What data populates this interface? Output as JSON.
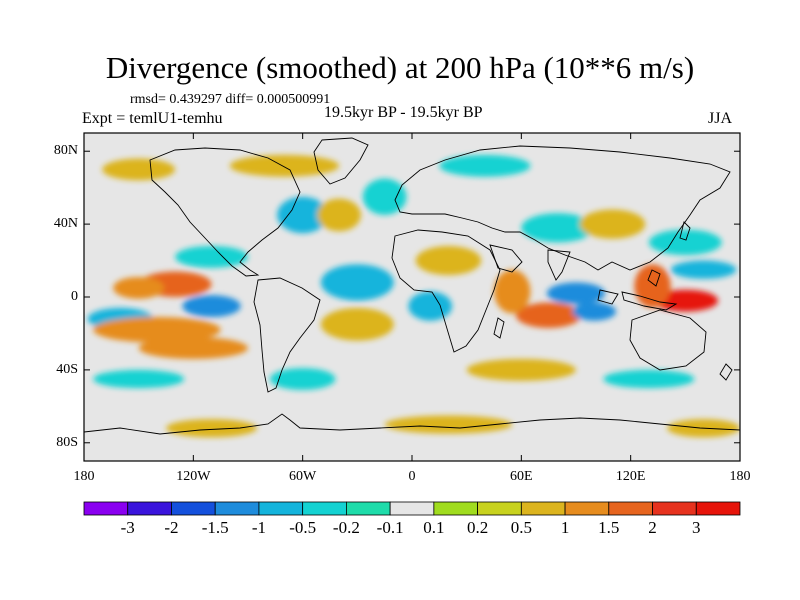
{
  "title": "Divergence (smoothed) at 200 hPa (10**6 m/s)",
  "stats": "rmsd= 0.439297  diff= 0.000500991",
  "experiment": "Expt = temlU1-temhu",
  "period": "19.5kyr BP - 19.5kyr BP",
  "season": "JJA",
  "lat_ticks": [
    "80N",
    "40N",
    "0",
    "40S",
    "80S"
  ],
  "lat_values": [
    80,
    40,
    0,
    -40,
    -80
  ],
  "lon_ticks": [
    "180",
    "120W",
    "60W",
    "0",
    "60E",
    "120E",
    "180"
  ],
  "lon_values": [
    -180,
    -120,
    -60,
    0,
    60,
    120,
    180
  ],
  "colorbar_labels": [
    "-3",
    "-2",
    "-1.5",
    "-1",
    "-0.5",
    "-0.2",
    "-0.1",
    "0.1",
    "0.2",
    "0.5",
    "1",
    "1.5",
    "2",
    "3"
  ],
  "colorbar_colors": [
    "#8a00f0",
    "#3a14dc",
    "#1450dc",
    "#1e8cdc",
    "#14b4dc",
    "#14d2d2",
    "#1edcaa",
    "#e6e6e6",
    "#a0dc1e",
    "#c8d21e",
    "#dcb41e",
    "#e68c1e",
    "#e6641e",
    "#e6321e",
    "#e6140a"
  ],
  "land_color": "#e6e6e6",
  "chart_data": {
    "type": "heatmap",
    "title": "Divergence (smoothed) at 200 hPa (10**6 m/s)",
    "variable": "Divergence (smoothed) at 200 hPa",
    "units": "10**6 m/s",
    "lon_range": [
      -180,
      180
    ],
    "lat_range": [
      -90,
      90
    ],
    "contour_levels": [
      -3,
      -2,
      -1.5,
      -1,
      -0.5,
      -0.2,
      -0.1,
      0.1,
      0.2,
      0.5,
      1,
      1.5,
      2,
      3
    ],
    "features": [
      {
        "lon": 150,
        "lat": -2,
        "value": 3.0,
        "rx": 18,
        "ry": 6
      },
      {
        "lon": 132,
        "lat": 6,
        "value": 1.8,
        "rx": 10,
        "ry": 12
      },
      {
        "lon": 75,
        "lat": -10,
        "value": 1.6,
        "rx": 18,
        "ry": 7
      },
      {
        "lon": 55,
        "lat": 3,
        "value": 1.3,
        "rx": 10,
        "ry": 12
      },
      {
        "lon": 90,
        "lat": 2,
        "value": -1.5,
        "rx": 16,
        "ry": 6
      },
      {
        "lon": 100,
        "lat": -8,
        "value": -1.5,
        "rx": 12,
        "ry": 5
      },
      {
        "lon": -130,
        "lat": 7,
        "value": 1.5,
        "rx": 20,
        "ry": 7
      },
      {
        "lon": -150,
        "lat": 5,
        "value": 1.0,
        "rx": 14,
        "ry": 6
      },
      {
        "lon": -110,
        "lat": -5,
        "value": -1.5,
        "rx": 16,
        "ry": 6
      },
      {
        "lon": -160,
        "lat": -12,
        "value": -1.0,
        "rx": 18,
        "ry": 6
      },
      {
        "lon": -140,
        "lat": -18,
        "value": 1.2,
        "rx": 35,
        "ry": 7
      },
      {
        "lon": -120,
        "lat": -28,
        "value": 1.0,
        "rx": 30,
        "ry": 6
      },
      {
        "lon": -110,
        "lat": 22,
        "value": -0.5,
        "rx": 20,
        "ry": 6
      },
      {
        "lon": -30,
        "lat": 8,
        "value": -1.0,
        "rx": 20,
        "ry": 10
      },
      {
        "lon": -30,
        "lat": -15,
        "value": 0.6,
        "rx": 20,
        "ry": 9
      },
      {
        "lon": 10,
        "lat": -5,
        "value": -0.8,
        "rx": 12,
        "ry": 8
      },
      {
        "lon": 20,
        "lat": 20,
        "value": 0.6,
        "rx": 18,
        "ry": 8
      },
      {
        "lon": -15,
        "lat": 55,
        "value": -0.5,
        "rx": 12,
        "ry": 10
      },
      {
        "lon": -60,
        "lat": 45,
        "value": -0.8,
        "rx": 14,
        "ry": 10
      },
      {
        "lon": -40,
        "lat": 45,
        "value": 0.8,
        "rx": 12,
        "ry": 9
      },
      {
        "lon": 80,
        "lat": 38,
        "value": -0.5,
        "rx": 20,
        "ry": 8
      },
      {
        "lon": 110,
        "lat": 40,
        "value": 0.5,
        "rx": 18,
        "ry": 8
      },
      {
        "lon": 150,
        "lat": 30,
        "value": -0.5,
        "rx": 20,
        "ry": 7
      },
      {
        "lon": 160,
        "lat": 15,
        "value": -0.8,
        "rx": 18,
        "ry": 5
      },
      {
        "lon": 40,
        "lat": 72,
        "value": -0.5,
        "rx": 25,
        "ry": 6
      },
      {
        "lon": -70,
        "lat": 72,
        "value": 0.5,
        "rx": 30,
        "ry": 6
      },
      {
        "lon": -150,
        "lat": 70,
        "value": 0.5,
        "rx": 20,
        "ry": 6
      },
      {
        "lon": -60,
        "lat": -45,
        "value": -0.5,
        "rx": 18,
        "ry": 6
      },
      {
        "lon": 60,
        "lat": -40,
        "value": 0.7,
        "rx": 30,
        "ry": 6
      },
      {
        "lon": -150,
        "lat": -45,
        "value": -0.5,
        "rx": 25,
        "ry": 5
      },
      {
        "lon": 130,
        "lat": -45,
        "value": -0.5,
        "rx": 25,
        "ry": 5
      },
      {
        "lon": 20,
        "lat": -70,
        "value": 0.5,
        "rx": 35,
        "ry": 5
      },
      {
        "lon": -110,
        "lat": -72,
        "value": 0.5,
        "rx": 25,
        "ry": 5
      },
      {
        "lon": 160,
        "lat": -72,
        "value": 0.6,
        "rx": 20,
        "ry": 5
      }
    ]
  }
}
